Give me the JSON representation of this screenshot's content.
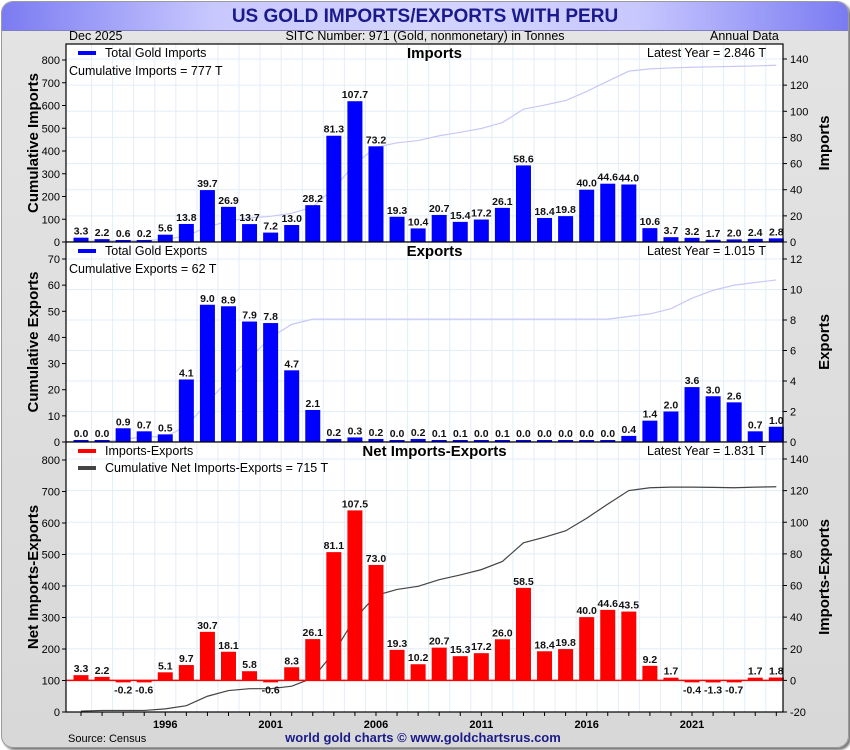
{
  "header": {
    "title": "US GOLD IMPORTS/EXPORTS WITH PERU",
    "date": "Dec  2025",
    "sitc": "SITC Number: 971 (Gold, nonmonetary) in Tonnes",
    "frequency": "Annual Data"
  },
  "footer": {
    "source": "Source: Census",
    "credit": "world gold charts © www.goldchartsrus.com"
  },
  "colors": {
    "imports_bar": "#0000ff",
    "exports_bar": "#0000ff",
    "net_bar": "#ff0000",
    "cumulative_line_light": "#c8c8f8",
    "cumulative_line_dark": "#444444",
    "title_text": "#1a1a8a"
  },
  "chart_data": [
    {
      "type": "bar",
      "panel": "imports",
      "title": "Imports",
      "legend": [
        "Total Gold Imports"
      ],
      "legend_position": "top-left",
      "annotation_left": "Cumulative Imports = 777 T",
      "annotation_right": "Latest Year = 2.846 T",
      "ylabel_left": "Cumulative Imports",
      "ylabel_right": "Imports",
      "ylim_left": [
        0,
        800
      ],
      "yticks_left": [
        0,
        100,
        200,
        300,
        400,
        500,
        600,
        700,
        800
      ],
      "ylim_right": [
        0,
        140
      ],
      "yticks_right": [
        0,
        20,
        40,
        60,
        80,
        100,
        120,
        140
      ],
      "grid": true,
      "x": [
        1992,
        1993,
        1994,
        1995,
        1996,
        1997,
        1998,
        1999,
        2000,
        2001,
        2002,
        2003,
        2004,
        2005,
        2006,
        2007,
        2008,
        2009,
        2010,
        2011,
        2012,
        2013,
        2014,
        2015,
        2016,
        2017,
        2018,
        2019,
        2020,
        2021,
        2022,
        2023,
        2024,
        2025
      ],
      "series": [
        {
          "name": "Total Gold Imports",
          "axis": "right",
          "values": [
            3.3,
            2.2,
            0.6,
            0.2,
            5.6,
            13.8,
            39.7,
            26.9,
            13.7,
            7.2,
            13.0,
            28.2,
            81.3,
            107.7,
            73.2,
            19.3,
            10.4,
            20.7,
            15.4,
            17.2,
            26.1,
            58.6,
            18.4,
            19.8,
            40.0,
            44.6,
            44.0,
            10.6,
            3.7,
            3.2,
            1.7,
            2.0,
            2.4,
            2.8
          ],
          "labels": [
            "3.3",
            "2.2",
            "0.6",
            "0.2",
            "5.6",
            "13.8",
            "39.7",
            "26.9",
            "13.7",
            "7.2",
            "13.0",
            "28.2",
            "81.3",
            "107.7",
            "73.2",
            "19.3",
            "10.4",
            "20.7",
            "15.4",
            "17.2",
            "26.1",
            "58.6",
            "18.4",
            "19.8",
            "40.0",
            "44.6",
            "44.0",
            "10.6",
            "3.7",
            "3.2",
            "1.7",
            "2.0",
            "2.4",
            "2.8"
          ]
        },
        {
          "name": "Cumulative Imports",
          "axis": "left",
          "type": "line",
          "values": [
            3,
            6,
            6,
            6,
            12,
            26,
            66,
            92,
            106,
            113,
            126,
            154,
            236,
            343,
            416,
            436,
            446,
            467,
            482,
            499,
            525,
            584,
            602,
            622,
            662,
            707,
            751,
            761,
            765,
            768,
            770,
            772,
            774,
            777
          ]
        }
      ]
    },
    {
      "type": "bar",
      "panel": "exports",
      "title": "Exports",
      "legend": [
        "Total Gold Exports"
      ],
      "legend_position": "top-left",
      "annotation_left": "Cumulative Exports = 62 T",
      "annotation_right": "Latest Year = 1.015 T",
      "ylabel_left": "Cumulative Exports",
      "ylabel_right": "Exports",
      "ylim_left": [
        0,
        70
      ],
      "yticks_left": [
        0,
        10,
        20,
        30,
        40,
        50,
        60,
        70
      ],
      "ylim_right": [
        0,
        12
      ],
      "yticks_right": [
        0,
        2,
        4,
        6,
        8,
        10,
        12
      ],
      "grid": true,
      "x": [
        1992,
        1993,
        1994,
        1995,
        1996,
        1997,
        1998,
        1999,
        2000,
        2001,
        2002,
        2003,
        2004,
        2005,
        2006,
        2007,
        2008,
        2009,
        2010,
        2011,
        2012,
        2013,
        2014,
        2015,
        2016,
        2017,
        2018,
        2019,
        2020,
        2021,
        2022,
        2023,
        2024,
        2025
      ],
      "series": [
        {
          "name": "Total Gold Exports",
          "axis": "right",
          "values": [
            0.0,
            0.0,
            0.9,
            0.7,
            0.5,
            4.1,
            9.0,
            8.9,
            7.9,
            7.8,
            4.7,
            2.1,
            0.2,
            0.3,
            0.2,
            0.0,
            0.2,
            0.1,
            0.1,
            0.0,
            0.1,
            0.0,
            0.0,
            0.0,
            0.0,
            0.0,
            0.4,
            1.4,
            2.0,
            3.6,
            3.0,
            2.6,
            0.7,
            1.0
          ],
          "labels": [
            "0.0",
            "0.0",
            "0.9",
            "0.7",
            "0.5",
            "4.1",
            "9.0",
            "8.9",
            "7.9",
            "7.8",
            "4.7",
            "2.1",
            "0.2",
            "0.3",
            "0.2",
            "0.0",
            "0.2",
            "0.1",
            "0.1",
            "0.0",
            "0.1",
            "0.0",
            "0.0",
            "0.0",
            "0.0",
            "0.0",
            "0.4",
            "1.4",
            "2.0",
            "3.6",
            "3.0",
            "2.6",
            "0.7",
            "1.0"
          ]
        },
        {
          "name": "Cumulative Exports",
          "axis": "left",
          "type": "line",
          "values": [
            0,
            0,
            1,
            2,
            2,
            6,
            15,
            24,
            32,
            40,
            45,
            47,
            47,
            47,
            47,
            47,
            47,
            47,
            47,
            47,
            47,
            47,
            47,
            47,
            47,
            47,
            48,
            49,
            51,
            55,
            58,
            60,
            61,
            62
          ]
        }
      ]
    },
    {
      "type": "bar",
      "panel": "net",
      "title": "Net Imports-Exports",
      "legend": [
        "Imports-Exports",
        "Cumulative Net Imports-Exports = 715 T"
      ],
      "legend_position": "top-left",
      "annotation_right": "Latest Year = 1.831 T",
      "ylabel_left": "Net Imports-Exports",
      "ylabel_right": "Imports-Exports",
      "ylim_left": [
        0,
        800
      ],
      "yticks_left": [
        0,
        100,
        200,
        300,
        400,
        500,
        600,
        700,
        800
      ],
      "ylim_right": [
        -20,
        140
      ],
      "yticks_right": [
        -20,
        0,
        20,
        40,
        60,
        80,
        100,
        120,
        140
      ],
      "grid": true,
      "xticks": [
        "1996",
        "2001",
        "2006",
        "2011",
        "2016",
        "2021"
      ],
      "x": [
        1992,
        1993,
        1994,
        1995,
        1996,
        1997,
        1998,
        1999,
        2000,
        2001,
        2002,
        2003,
        2004,
        2005,
        2006,
        2007,
        2008,
        2009,
        2010,
        2011,
        2012,
        2013,
        2014,
        2015,
        2016,
        2017,
        2018,
        2019,
        2020,
        2021,
        2022,
        2023,
        2024,
        2025
      ],
      "series": [
        {
          "name": "Imports-Exports",
          "axis": "right",
          "values": [
            3.3,
            2.2,
            -0.2,
            -0.6,
            5.1,
            9.7,
            30.7,
            18.1,
            5.8,
            -0.6,
            8.3,
            26.1,
            81.1,
            107.5,
            73.0,
            19.3,
            10.2,
            20.7,
            15.3,
            17.2,
            26.0,
            58.5,
            18.4,
            19.8,
            40.0,
            44.6,
            43.5,
            9.2,
            1.7,
            -0.4,
            -1.3,
            -0.7,
            1.7,
            1.8
          ],
          "labels": [
            "3.3",
            "2.2",
            "-0.2",
            "-0.6",
            "5.1",
            "9.7",
            "30.7",
            "18.1",
            "5.8",
            "-0.6",
            "8.3",
            "26.1",
            "81.1",
            "107.5",
            "73.0",
            "19.3",
            "10.2",
            "20.7",
            "15.3",
            "17.2",
            "26.0",
            "58.5",
            "18.4",
            "19.8",
            "40.0",
            "44.6",
            "43.5",
            "9.2",
            "1.7",
            "-0.4",
            "-1.3",
            "-0.7",
            "1.7",
            "1.8"
          ]
        },
        {
          "name": "Cumulative Net Imports-Exports",
          "axis": "left",
          "type": "line",
          "values": [
            3,
            5,
            5,
            5,
            10,
            20,
            50,
            68,
            74,
            74,
            82,
            108,
            189,
            297,
            370,
            389,
            399,
            420,
            435,
            452,
            478,
            537,
            555,
            575,
            615,
            660,
            703,
            712,
            714,
            714,
            713,
            712,
            714,
            715
          ]
        }
      ]
    }
  ]
}
